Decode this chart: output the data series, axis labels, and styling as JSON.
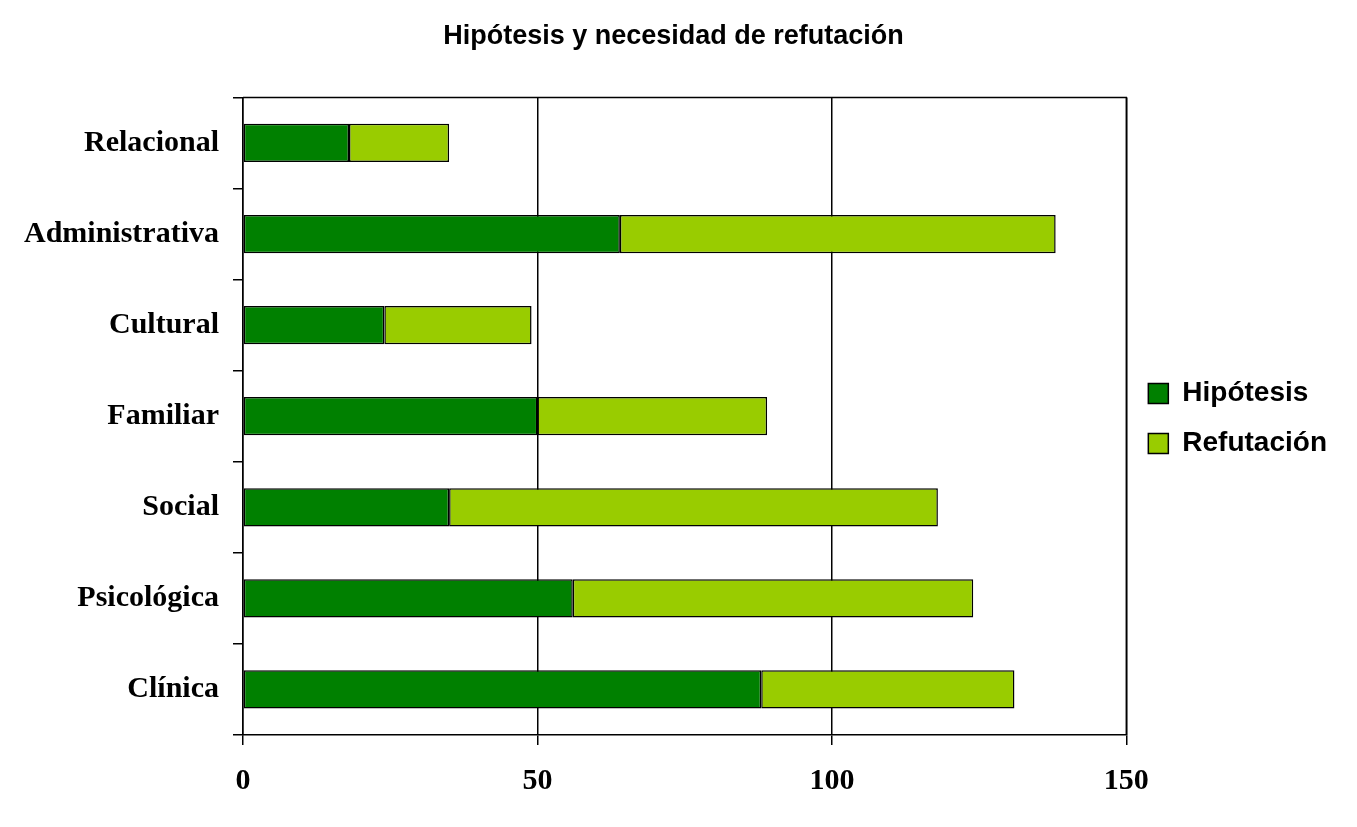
{
  "chart_data": {
    "type": "bar",
    "title": "Hipótesis y necesidad de refutación",
    "orientation": "horizontal",
    "stacked": true,
    "categories": [
      "Relacional",
      "Administrativa",
      "Cultural",
      "Familiar",
      "Social",
      "Psicológica",
      "Clínica"
    ],
    "series": [
      {
        "name": "Hipótesis",
        "color": "#008000",
        "values": [
          18,
          64,
          24,
          50,
          35,
          56,
          88
        ]
      },
      {
        "name": "Refutación",
        "color": "#99cc00",
        "values": [
          17,
          74,
          25,
          39,
          83,
          68,
          43
        ]
      }
    ],
    "xlim": [
      0,
      150
    ],
    "xticks": [
      0,
      50,
      100,
      150
    ],
    "grid": "x",
    "legend": "right"
  }
}
